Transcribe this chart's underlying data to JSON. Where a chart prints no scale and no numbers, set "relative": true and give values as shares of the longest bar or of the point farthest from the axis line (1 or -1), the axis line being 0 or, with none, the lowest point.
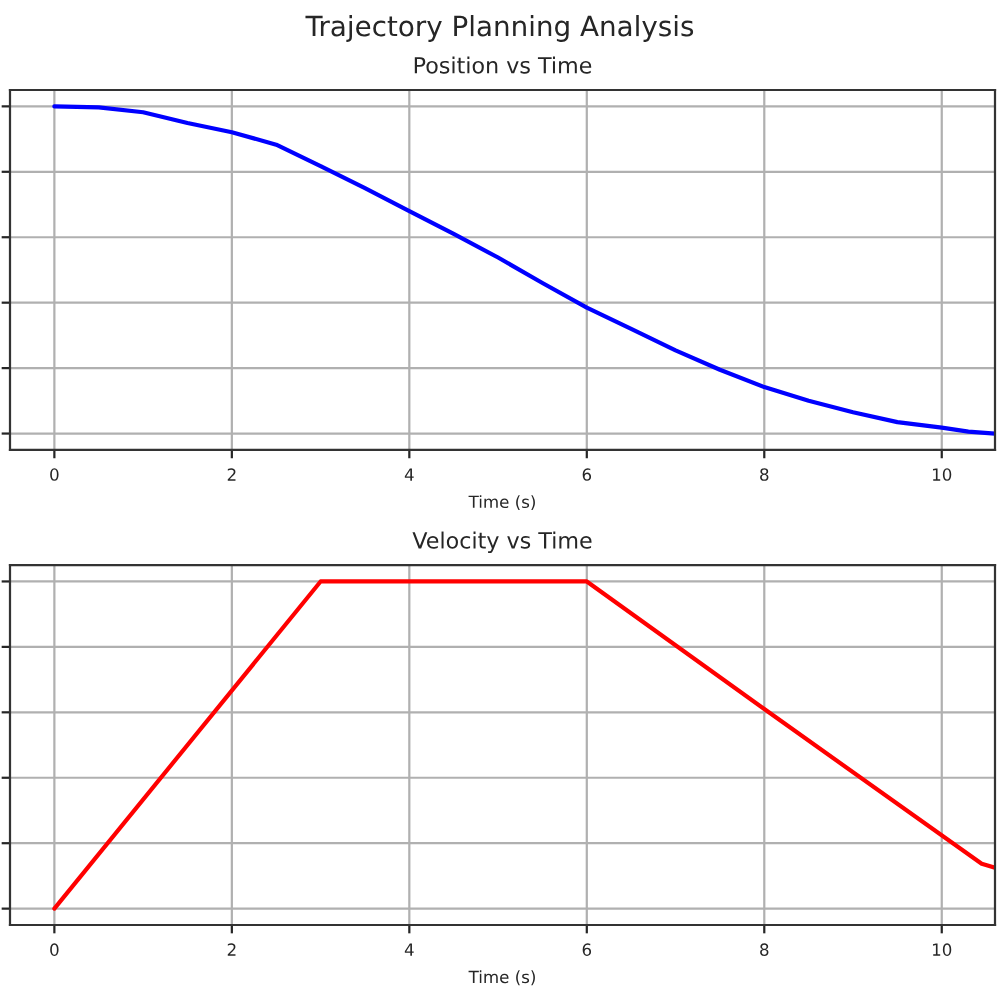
{
  "chart_data": [
    {
      "type": "line",
      "title": "Position vs Time",
      "xlabel": "Time (s)",
      "annotations": [
        "Trajectory Planning Analysis"
      ],
      "relative": true,
      "grid": true,
      "xlim": [
        -0.5,
        10.6
      ],
      "xticks": [
        0,
        2,
        4,
        6,
        8,
        10
      ],
      "series": [
        {
          "color": "#0000ff",
          "x": [
            0,
            0.5,
            1,
            1.5,
            2,
            2.5,
            3,
            3.5,
            4,
            4.5,
            5,
            5.5,
            6,
            6.5,
            7,
            7.5,
            8,
            8.5,
            9,
            9.5,
            10,
            10.3,
            10.6
          ],
          "values": [
            1,
            0.997,
            0.982,
            0.949,
            0.921,
            0.883,
            0.817,
            0.75,
            0.68,
            0.61,
            0.538,
            0.46,
            0.385,
            0.32,
            0.254,
            0.195,
            0.142,
            0.1,
            0.065,
            0.035,
            0.018,
            0.006,
            0
          ]
        }
      ]
    },
    {
      "type": "line",
      "title": "Velocity vs Time",
      "xlabel": "Time (s)",
      "relative": true,
      "grid": true,
      "xlim": [
        -0.5,
        10.6
      ],
      "xticks": [
        0,
        2,
        4,
        6,
        8,
        10
      ],
      "series": [
        {
          "color": "#ff0000",
          "x": [
            0,
            3,
            6,
            8,
            10.45,
            10.6
          ],
          "values": [
            0,
            1,
            1,
            0.61,
            0.137,
            0.125
          ]
        }
      ]
    }
  ]
}
